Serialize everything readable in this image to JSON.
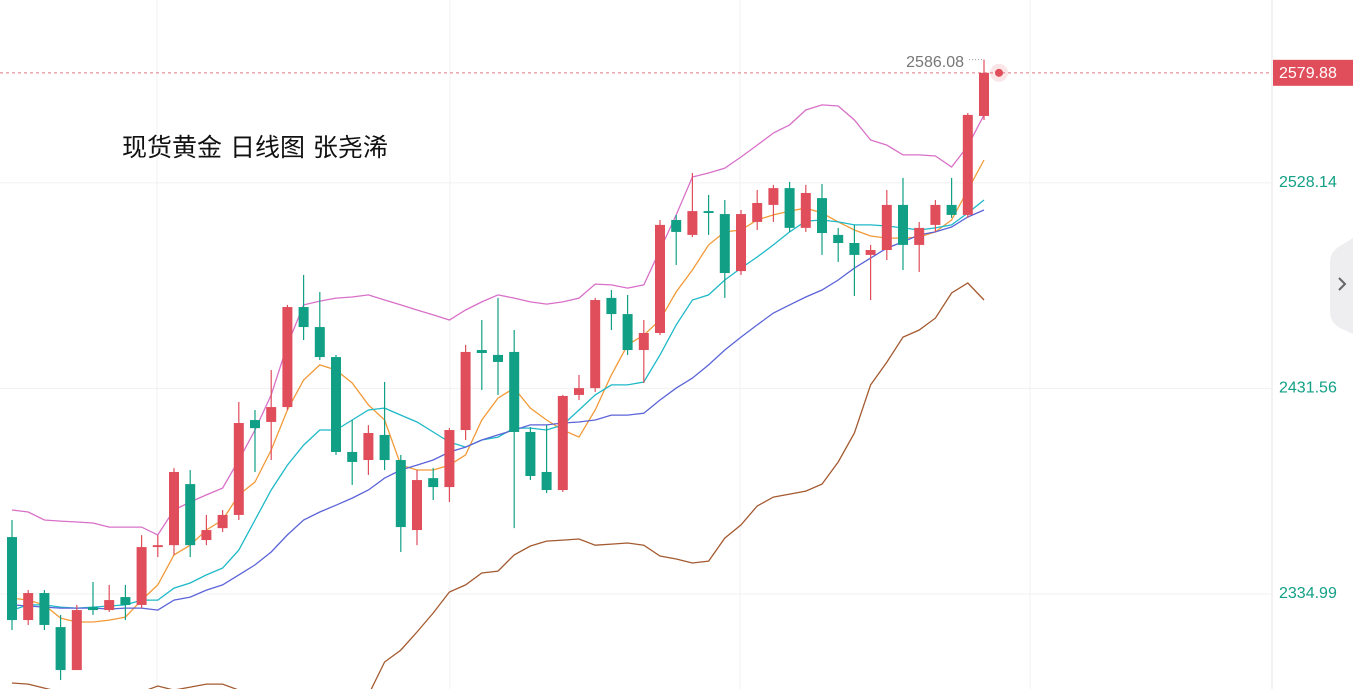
{
  "chart_data": {
    "type": "candlestick",
    "title": "现货黄金 日线图 张尧浠",
    "ylim": [
      2290.3,
      2614.1
    ],
    "yticks": [
      2334.99,
      2431.56,
      2528.14
    ],
    "grid": true,
    "up_color": "#e04e5c",
    "down_color": "#11a085",
    "last_price": 2579.88,
    "last_price_color": "#e04e5c",
    "high_marker": 2586.08,
    "open": [
      2361.7,
      2322.7,
      2335.4,
      2319.4,
      2299.2,
      2328.8,
      2327.4,
      2333.5,
      2329.8,
      2357.0,
      2357.9,
      2386.6,
      2360.3,
      2365.9,
      2372.1,
      2416.7,
      2415.8,
      2422.8,
      2469.8,
      2460.4,
      2446.3,
      2401.7,
      2397.9,
      2409.7,
      2397.9,
      2365.0,
      2389.4,
      2385.2,
      2412.0,
      2449.6,
      2447.3,
      2448.7,
      2411.1,
      2392.3,
      2383.8,
      2428.5,
      2431.7,
      2474.1,
      2466.5,
      2449.6,
      2457.6,
      2510.7,
      2503.7,
      2514.9,
      2513.5,
      2486.7,
      2509.8,
      2517.8,
      2525.7,
      2507.0,
      2521.0,
      2503.7,
      2499.9,
      2494.3,
      2496.6,
      2517.8,
      2499.0,
      2508.4,
      2517.8,
      2513.1,
      2559.6
    ],
    "close": [
      2322.7,
      2335.4,
      2320.4,
      2299.2,
      2327.4,
      2327.4,
      2332.1,
      2329.8,
      2357.0,
      2357.9,
      2392.3,
      2357.9,
      2365.0,
      2372.1,
      2415.3,
      2412.9,
      2422.8,
      2469.8,
      2460.4,
      2446.3,
      2401.7,
      2397.0,
      2410.6,
      2397.9,
      2366.4,
      2388.5,
      2385.2,
      2412.0,
      2448.7,
      2448.2,
      2444.0,
      2411.1,
      2390.4,
      2383.8,
      2428.0,
      2431.7,
      2473.1,
      2466.5,
      2449.6,
      2457.6,
      2508.4,
      2505.1,
      2514.9,
      2514.0,
      2485.8,
      2513.5,
      2518.7,
      2525.7,
      2507.0,
      2523.4,
      2504.6,
      2499.9,
      2494.3,
      2496.6,
      2517.8,
      2499.0,
      2507.0,
      2517.8,
      2513.1,
      2560.1,
      2579.88
    ],
    "high": [
      2369.7,
      2336.8,
      2336.8,
      2325.1,
      2329.8,
      2340.6,
      2339.2,
      2339.2,
      2362.6,
      2362.6,
      2394.1,
      2393.2,
      2372.1,
      2374.4,
      2425.2,
      2421.4,
      2440.2,
      2470.8,
      2484.9,
      2476.9,
      2447.3,
      2416.7,
      2414.3,
      2434.6,
      2400.3,
      2393.2,
      2394.1,
      2412.9,
      2452.0,
      2463.7,
      2474.1,
      2459.0,
      2413.4,
      2414.3,
      2428.5,
      2437.9,
      2474.1,
      2477.8,
      2475.5,
      2463.7,
      2510.7,
      2513.1,
      2532.8,
      2522.5,
      2520.1,
      2515.4,
      2524.8,
      2527.2,
      2528.6,
      2527.2,
      2527.6,
      2507.0,
      2508.4,
      2499.0,
      2524.8,
      2530.5,
      2509.8,
      2520.1,
      2530.5,
      2561.0,
      2586.08
    ],
    "low": [
      2318.0,
      2320.4,
      2318.0,
      2294.5,
      2299.2,
      2325.1,
      2326.5,
      2322.7,
      2328.3,
      2352.3,
      2353.2,
      2352.3,
      2357.9,
      2364.1,
      2369.7,
      2392.3,
      2397.9,
      2421.4,
      2454.3,
      2444.9,
      2400.3,
      2386.2,
      2390.9,
      2393.2,
      2354.7,
      2357.9,
      2379.1,
      2378.2,
      2407.3,
      2430.8,
      2428.5,
      2365.9,
      2388.5,
      2382.4,
      2382.9,
      2426.1,
      2429.9,
      2459.0,
      2447.3,
      2434.1,
      2456.6,
      2489.6,
      2502.7,
      2503.7,
      2474.1,
      2484.9,
      2506.0,
      2509.8,
      2505.1,
      2505.1,
      2494.3,
      2491.0,
      2475.0,
      2473.1,
      2491.9,
      2487.2,
      2486.3,
      2505.1,
      2511.7,
      2511.7,
      2557.7
    ],
    "lines": [
      {
        "color": "#d870c8",
        "values": [
          2374.4,
          2373.5,
          2369.7,
          2369.2,
          2368.8,
          2368.3,
          2366.4,
          2366.4,
          2366.4,
          2362.7,
          2374.4,
          2378.2,
          2381.5,
          2384.7,
          2397.9,
          2412.0,
          2428.5,
          2452.0,
          2470.8,
          2472.6,
          2474.0,
          2474.5,
          2475.5,
          2473.1,
          2470.8,
          2468.4,
          2466.1,
          2463.7,
          2468.4,
          2472.2,
          2475.5,
          2474.0,
          2472.2,
          2471.2,
          2472.2,
          2474.0,
          2480.6,
          2480.2,
          2478.7,
          2480.2,
          2496.6,
          2513.1,
          2530.9,
          2532.8,
          2535.1,
          2540.3,
          2545.9,
          2551.6,
          2555.4,
          2562.4,
          2564.8,
          2564.3,
          2557.7,
          2548.3,
          2545.9,
          2541.3,
          2541.3,
          2540.8,
          2535.6,
          2545.5,
          2560.1
        ]
      },
      {
        "color": "#a45a30",
        "values": [
          2293.1,
          2292.6,
          2290.7,
          2288.9,
          2286.5,
          2285.6,
          2285.6,
          2286.5,
          2288.9,
          2291.7,
          2289.8,
          2291.2,
          2292.6,
          2292.6,
          2289.8,
          2286.1,
          2282.8,
          2279.5,
          2277.6,
          2277.6,
          2278.1,
          2279.5,
          2287.5,
          2303.0,
          2308.6,
          2317.1,
          2326.0,
          2335.9,
          2339.2,
          2344.8,
          2345.7,
          2353.3,
          2357.5,
          2359.8,
          2360.3,
          2360.8,
          2357.9,
          2358.4,
          2358.9,
          2357.9,
          2352.8,
          2351.4,
          2349.5,
          2350.4,
          2361.2,
          2367.4,
          2376.3,
          2380.5,
          2381.9,
          2383.3,
          2386.6,
          2397.0,
          2410.6,
          2433.2,
          2443.9,
          2455.7,
          2459.0,
          2464.6,
          2476.4,
          2481.1,
          2473.1
        ]
      },
      {
        "color": "#f29a38",
        "values": [
          2333.0,
          2332.1,
          2329.8,
          2323.6,
          2321.8,
          2321.8,
          2322.7,
          2324.1,
          2332.1,
          2339.2,
          2353.3,
          2357.9,
          2365.0,
          2369.7,
          2381.5,
          2387.6,
          2402.6,
          2421.4,
          2435.5,
          2442.6,
          2440.2,
          2434.1,
          2423.8,
          2416.7,
          2395.5,
          2393.2,
          2393.2,
          2395.5,
          2400.3,
          2416.7,
          2427.0,
          2431.7,
          2422.3,
          2416.7,
          2412.0,
          2408.7,
          2421.4,
          2437.9,
          2452.0,
          2456.6,
          2463.7,
          2476.9,
          2487.2,
          2499.0,
          2505.1,
          2506.0,
          2510.7,
          2513.1,
          2514.9,
          2516.3,
          2514.0,
          2509.8,
          2506.0,
          2503.2,
          2502.2,
          2502.2,
          2502.7,
          2505.1,
          2510.7,
          2524.8,
          2538.9
        ]
      },
      {
        "color": "#1eb9c8",
        "values": [
          2327.4,
          2329.8,
          2329.8,
          2328.8,
          2328.3,
          2328.8,
          2329.3,
          2329.8,
          2332.1,
          2332.1,
          2337.7,
          2340.1,
          2343.9,
          2347.1,
          2355.6,
          2369.7,
          2383.8,
          2395.5,
          2404.9,
          2412.0,
          2412.0,
          2416.7,
          2421.4,
          2422.3,
          2419.0,
          2415.8,
          2411.1,
          2406.4,
          2404.0,
          2407.3,
          2408.7,
          2412.9,
          2412.9,
          2412.0,
          2414.4,
          2421.4,
          2428.5,
          2433.2,
          2433.2,
          2434.6,
          2447.3,
          2461.4,
          2473.1,
          2475.5,
          2482.5,
          2488.1,
          2493.3,
          2499.0,
          2505.1,
          2510.2,
          2510.7,
          2509.8,
          2508.4,
          2508.4,
          2507.9,
          2507.0,
          2506.0,
          2507.0,
          2508.4,
          2514.0,
          2520.1
        ]
      },
      {
        "color": "#5b64d8",
        "values": [
          2329.8,
          2329.3,
          2328.8,
          2328.3,
          2328.3,
          2328.3,
          2327.9,
          2328.3,
          2328.3,
          2327.4,
          2332.1,
          2333.5,
          2336.8,
          2339.2,
          2343.9,
          2348.6,
          2354.7,
          2362.7,
          2369.7,
          2373.5,
          2376.7,
          2380.0,
          2383.8,
          2389.4,
          2393.2,
          2395.5,
          2397.9,
          2401.7,
          2404.0,
          2407.3,
          2409.7,
          2412.0,
          2414.4,
          2414.4,
          2415.3,
          2415.8,
          2416.7,
          2419.0,
          2419.0,
          2419.9,
          2426.1,
          2431.7,
          2436.4,
          2442.6,
          2449.6,
          2455.7,
          2461.4,
          2467.0,
          2470.8,
          2474.5,
          2477.8,
          2482.5,
          2488.1,
          2492.8,
          2497.5,
          2500.4,
          2503.7,
          2505.1,
          2507.4,
          2512.1,
          2515.4
        ]
      }
    ]
  }
}
